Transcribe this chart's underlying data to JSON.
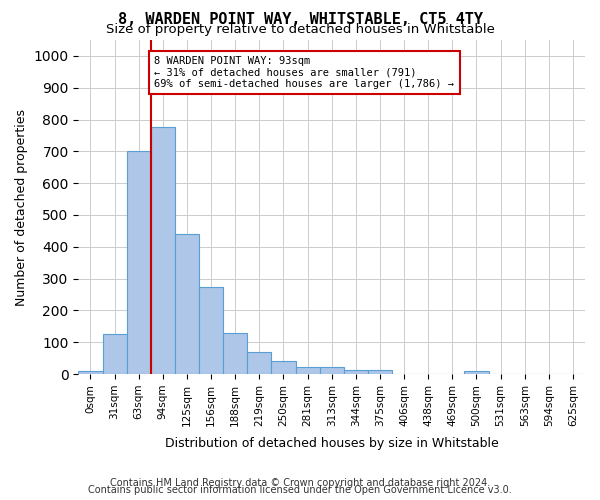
{
  "title": "8, WARDEN POINT WAY, WHITSTABLE, CT5 4TY",
  "subtitle": "Size of property relative to detached houses in Whitstable",
  "xlabel": "Distribution of detached houses by size in Whitstable",
  "ylabel": "Number of detached properties",
  "bin_labels": [
    "0sqm",
    "31sqm",
    "63sqm",
    "94sqm",
    "125sqm",
    "156sqm",
    "188sqm",
    "219sqm",
    "250sqm",
    "281sqm",
    "313sqm",
    "344sqm",
    "375sqm",
    "406sqm",
    "438sqm",
    "469sqm",
    "500sqm",
    "531sqm",
    "563sqm",
    "594sqm",
    "625sqm"
  ],
  "bar_values": [
    8,
    125,
    700,
    775,
    440,
    275,
    130,
    70,
    40,
    22,
    22,
    12,
    12,
    0,
    0,
    0,
    8,
    0,
    0,
    0,
    0
  ],
  "bar_color": "#aec6e8",
  "bar_edge_color": "#5a9fd4",
  "vline_x_pos": 2.5,
  "vline_color": "#cc0000",
  "annotation_line1": "8 WARDEN POINT WAY: 93sqm",
  "annotation_line2": "← 31% of detached houses are smaller (791)",
  "annotation_line3": "69% of semi-detached houses are larger (1,786) →",
  "annotation_box_color": "#cc0000",
  "ylim": [
    0,
    1050
  ],
  "yticks": [
    0,
    100,
    200,
    300,
    400,
    500,
    600,
    700,
    800,
    900,
    1000
  ],
  "footer_line1": "Contains HM Land Registry data © Crown copyright and database right 2024.",
  "footer_line2": "Contains public sector information licensed under the Open Government Licence v3.0.",
  "background_color": "#ffffff",
  "grid_color": "#cccccc"
}
